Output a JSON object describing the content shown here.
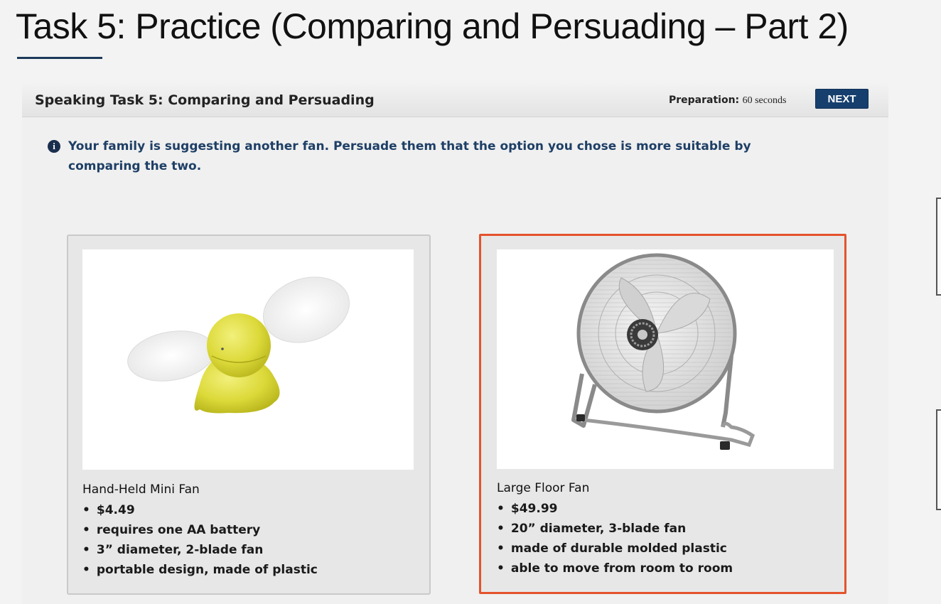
{
  "slide": {
    "title": "Task 5: Practice (Comparing and Persuading – Part 2)"
  },
  "task": {
    "header_title": "Speaking Task 5: Comparing and Persuading",
    "preparation_label": "Preparation:",
    "preparation_value": "60 seconds",
    "next_label": "NEXT",
    "instruction": "Your family is suggesting another fan. Persuade them that the option you chose is more suitable by comparing the two.",
    "info_icon": "info-circle-icon"
  },
  "options": [
    {
      "name": "Hand-Held Mini Fan",
      "features": [
        "$4.49",
        "requires one AA battery",
        "3” diameter, 2-blade fan",
        "portable design, made of plastic"
      ],
      "selected": false
    },
    {
      "name": "Large Floor Fan",
      "features": [
        "$49.99",
        "20” diameter, 3-blade fan",
        "made of durable molded plastic",
        "able to move from room to room"
      ],
      "selected": true
    }
  ],
  "colors": {
    "title_text": "#111111",
    "header_bg": "#e8e8e8",
    "next_button": "#163f6e",
    "instruction_text": "#1e3f66",
    "selected_border": "#e4532d",
    "card_bg": "#e7e7e7"
  }
}
